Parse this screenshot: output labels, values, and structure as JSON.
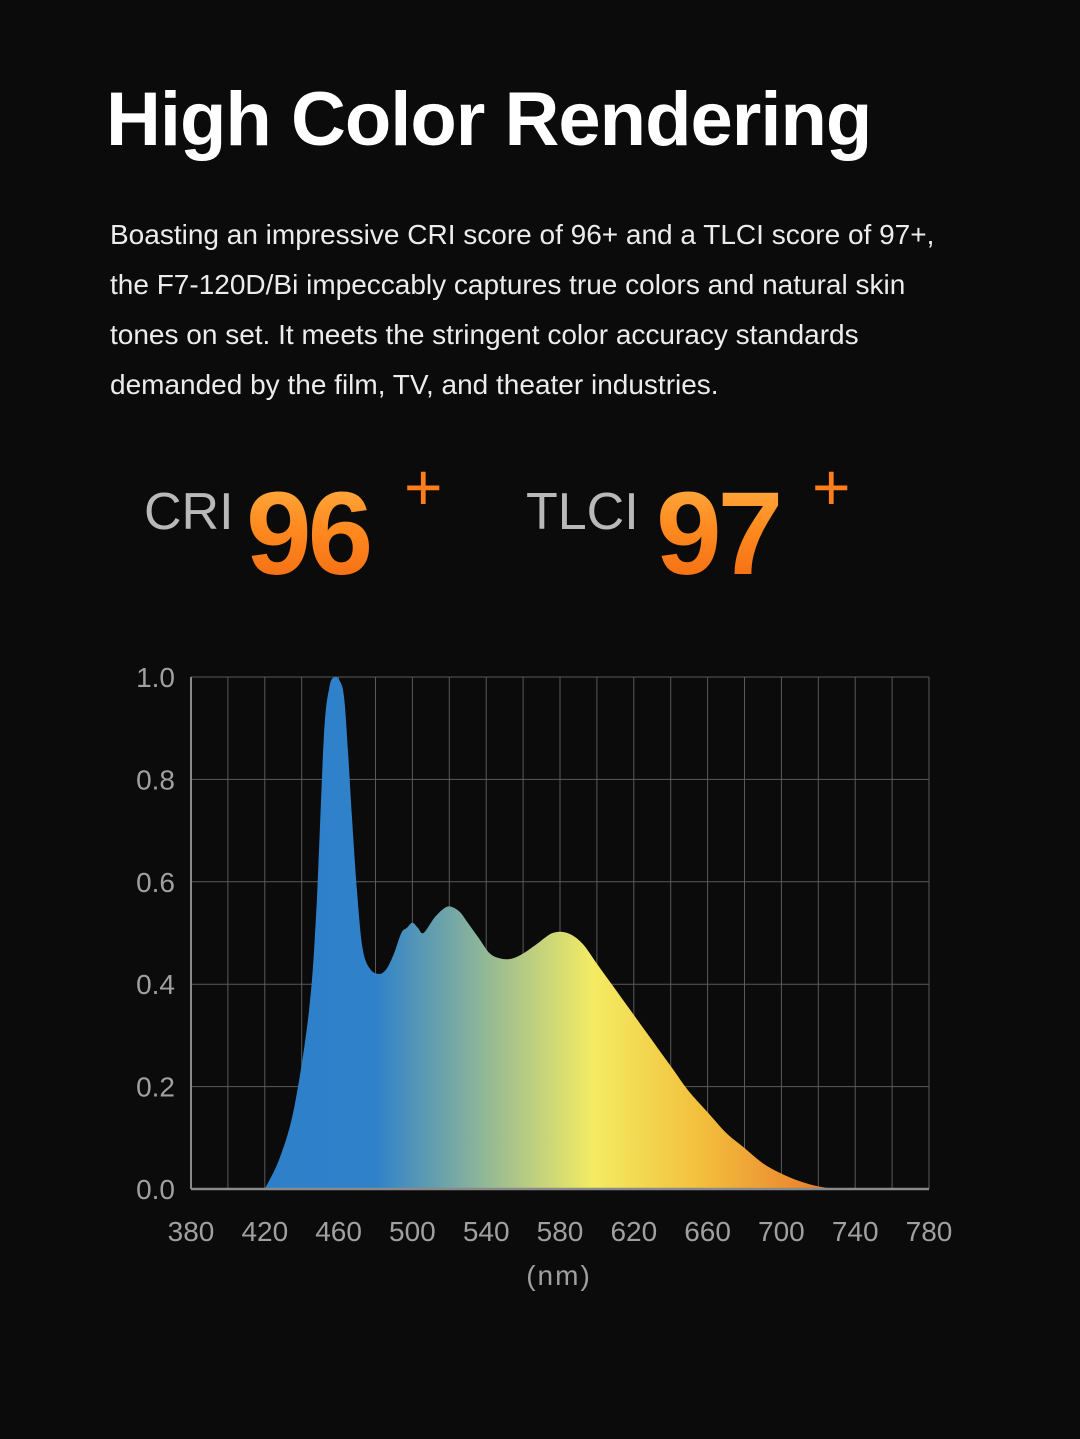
{
  "title": "High Color Rendering",
  "description": [
    "Boasting an impressive CRI score of 96+ and a TLCI score of 97+,",
    "the F7-120D/Bi impeccably captures true colors and natural skin",
    "tones on set. It meets the stringent color accuracy standards",
    "demanded by the film, TV, and theater industries."
  ],
  "scores": {
    "cri": {
      "label": "CRI",
      "value": "96",
      "suffix": "+"
    },
    "tlci": {
      "label": "TLCI",
      "value": "97",
      "suffix": "+"
    }
  },
  "colors": {
    "background": "#0b0b0b",
    "accent_orange": "#ff7d1a",
    "grid": "#5a5a5a",
    "tick_text": "#a0a0a0",
    "spectrum_stops": [
      "#2e7fc9",
      "#2f82ca",
      "#f3ec63",
      "#f3c13e",
      "#e8772a",
      "#e45b1d"
    ]
  },
  "chart_data": {
    "type": "area",
    "xlabel": "(nm)",
    "ylabel": "",
    "xlim": [
      380,
      780
    ],
    "ylim": [
      0,
      1.0
    ],
    "grid": true,
    "x_ticks": [
      380,
      420,
      460,
      500,
      540,
      580,
      620,
      660,
      700,
      740,
      780
    ],
    "y_ticks": [
      "0.0",
      "0.2",
      "0.4",
      "0.6",
      "0.8",
      "1.0"
    ],
    "series": [
      {
        "x": [
          420,
          428,
          436,
          444,
          448,
          452,
          455,
          458,
          461,
          463,
          465,
          467,
          470,
          473,
          477,
          482,
          486,
          490,
          494,
          497,
          500,
          503,
          506,
          512,
          518,
          522,
          526,
          530,
          536,
          542,
          548,
          554,
          560,
          568,
          576,
          584,
          592,
          600,
          606,
          612,
          618,
          624,
          630,
          636,
          642,
          650,
          660,
          670,
          680,
          690,
          700,
          710,
          720,
          730,
          740,
          750,
          756,
          760,
          764,
          768,
          772,
          775
        ],
        "y": [
          0.0,
          0.06,
          0.16,
          0.35,
          0.55,
          0.88,
          0.98,
          1.0,
          0.99,
          0.96,
          0.86,
          0.74,
          0.58,
          0.47,
          0.43,
          0.42,
          0.43,
          0.46,
          0.5,
          0.51,
          0.52,
          0.51,
          0.5,
          0.53,
          0.55,
          0.55,
          0.54,
          0.52,
          0.49,
          0.46,
          0.45,
          0.45,
          0.46,
          0.48,
          0.5,
          0.5,
          0.48,
          0.44,
          0.41,
          0.38,
          0.35,
          0.32,
          0.29,
          0.26,
          0.23,
          0.19,
          0.15,
          0.11,
          0.08,
          0.05,
          0.03,
          0.015,
          0.005,
          0.0,
          0.0,
          0.0,
          0.0,
          0.0,
          0.0,
          0.0,
          0.0,
          0.0
        ]
      }
    ]
  }
}
